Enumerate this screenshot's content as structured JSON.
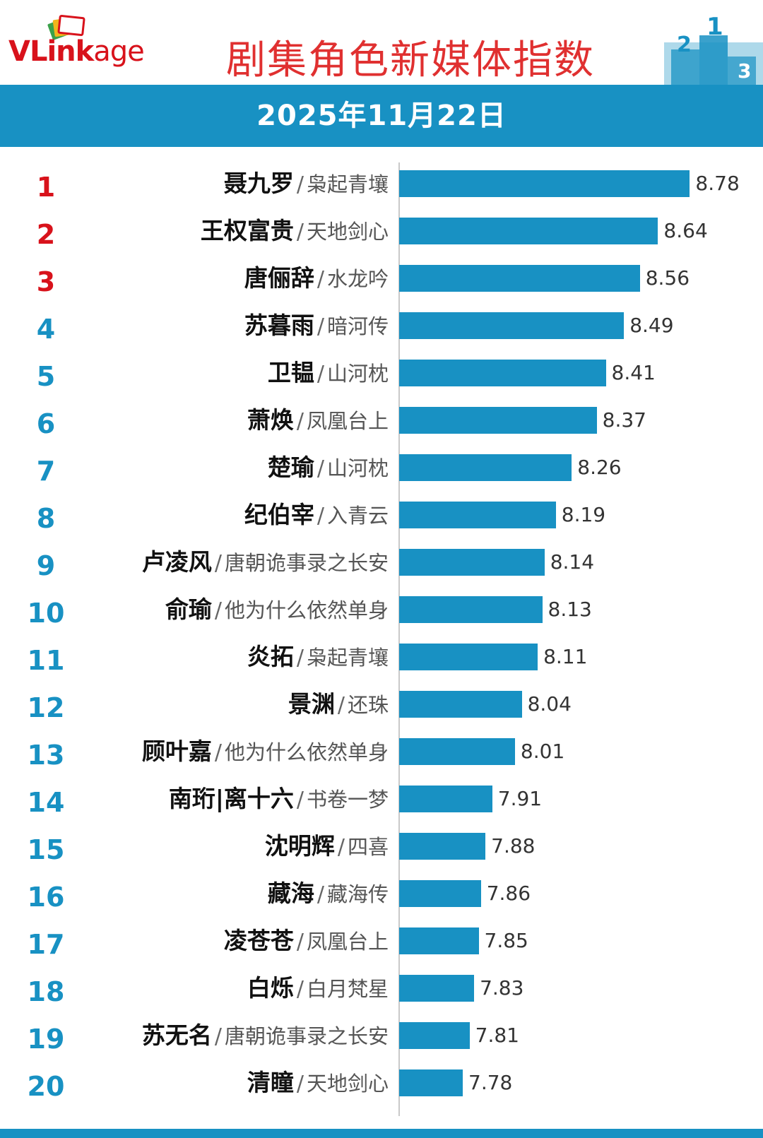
{
  "header": {
    "logo_v": "V",
    "logo_link": "Link",
    "logo_age": "age",
    "title": "剧集角色新媒体指数",
    "podium_numbers": [
      "2",
      "1",
      "3"
    ]
  },
  "date": "2025年11月22日",
  "colors": {
    "accent": "#1891c3",
    "top_rank": "#d8121b",
    "rank": "#1891c3",
    "title": "#e03030"
  },
  "chart_data": {
    "type": "bar",
    "orientation": "horizontal",
    "title": "剧集角色新媒体指数",
    "subtitle": "2025年11月22日",
    "xlim": [
      7.5,
      8.9
    ],
    "rows": [
      {
        "rank": "1",
        "name": "聂九罗",
        "show": "枭起青壤",
        "value": 8.78
      },
      {
        "rank": "2",
        "name": "王权富贵",
        "show": "天地剑心",
        "value": 8.64
      },
      {
        "rank": "3",
        "name": "唐俪辞",
        "show": "水龙吟",
        "value": 8.56
      },
      {
        "rank": "4",
        "name": "苏暮雨",
        "show": "暗河传",
        "value": 8.49
      },
      {
        "rank": "5",
        "name": "卫韫",
        "show": "山河枕",
        "value": 8.41
      },
      {
        "rank": "6",
        "name": "萧焕",
        "show": "凤凰台上",
        "value": 8.37
      },
      {
        "rank": "7",
        "name": "楚瑜",
        "show": "山河枕",
        "value": 8.26
      },
      {
        "rank": "8",
        "name": "纪伯宰",
        "show": "入青云",
        "value": 8.19
      },
      {
        "rank": "9",
        "name": "卢凌风",
        "show": "唐朝诡事录之长安",
        "value": 8.14
      },
      {
        "rank": "10",
        "name": "俞瑜",
        "show": "他为什么依然单身",
        "value": 8.13
      },
      {
        "rank": "11",
        "name": "炎拓",
        "show": "枭起青壤",
        "value": 8.11
      },
      {
        "rank": "12",
        "name": "景渊",
        "show": "还珠",
        "value": 8.04
      },
      {
        "rank": "13",
        "name": "顾叶嘉",
        "show": "他为什么依然单身",
        "value": 8.01
      },
      {
        "rank": "14",
        "name": "南珩|离十六",
        "show": "书卷一梦",
        "value": 7.91
      },
      {
        "rank": "15",
        "name": "沈明辉",
        "show": "四喜",
        "value": 7.88
      },
      {
        "rank": "16",
        "name": "藏海",
        "show": "藏海传",
        "value": 7.86
      },
      {
        "rank": "17",
        "name": "凌苍苍",
        "show": "凤凰台上",
        "value": 7.85
      },
      {
        "rank": "18",
        "name": "白烁",
        "show": "白月梵星",
        "value": 7.83
      },
      {
        "rank": "19",
        "name": "苏无名",
        "show": "唐朝诡事录之长安",
        "value": 7.81
      },
      {
        "rank": "20",
        "name": "清瞳",
        "show": "天地剑心",
        "value": 7.78
      }
    ],
    "separator": "/"
  }
}
